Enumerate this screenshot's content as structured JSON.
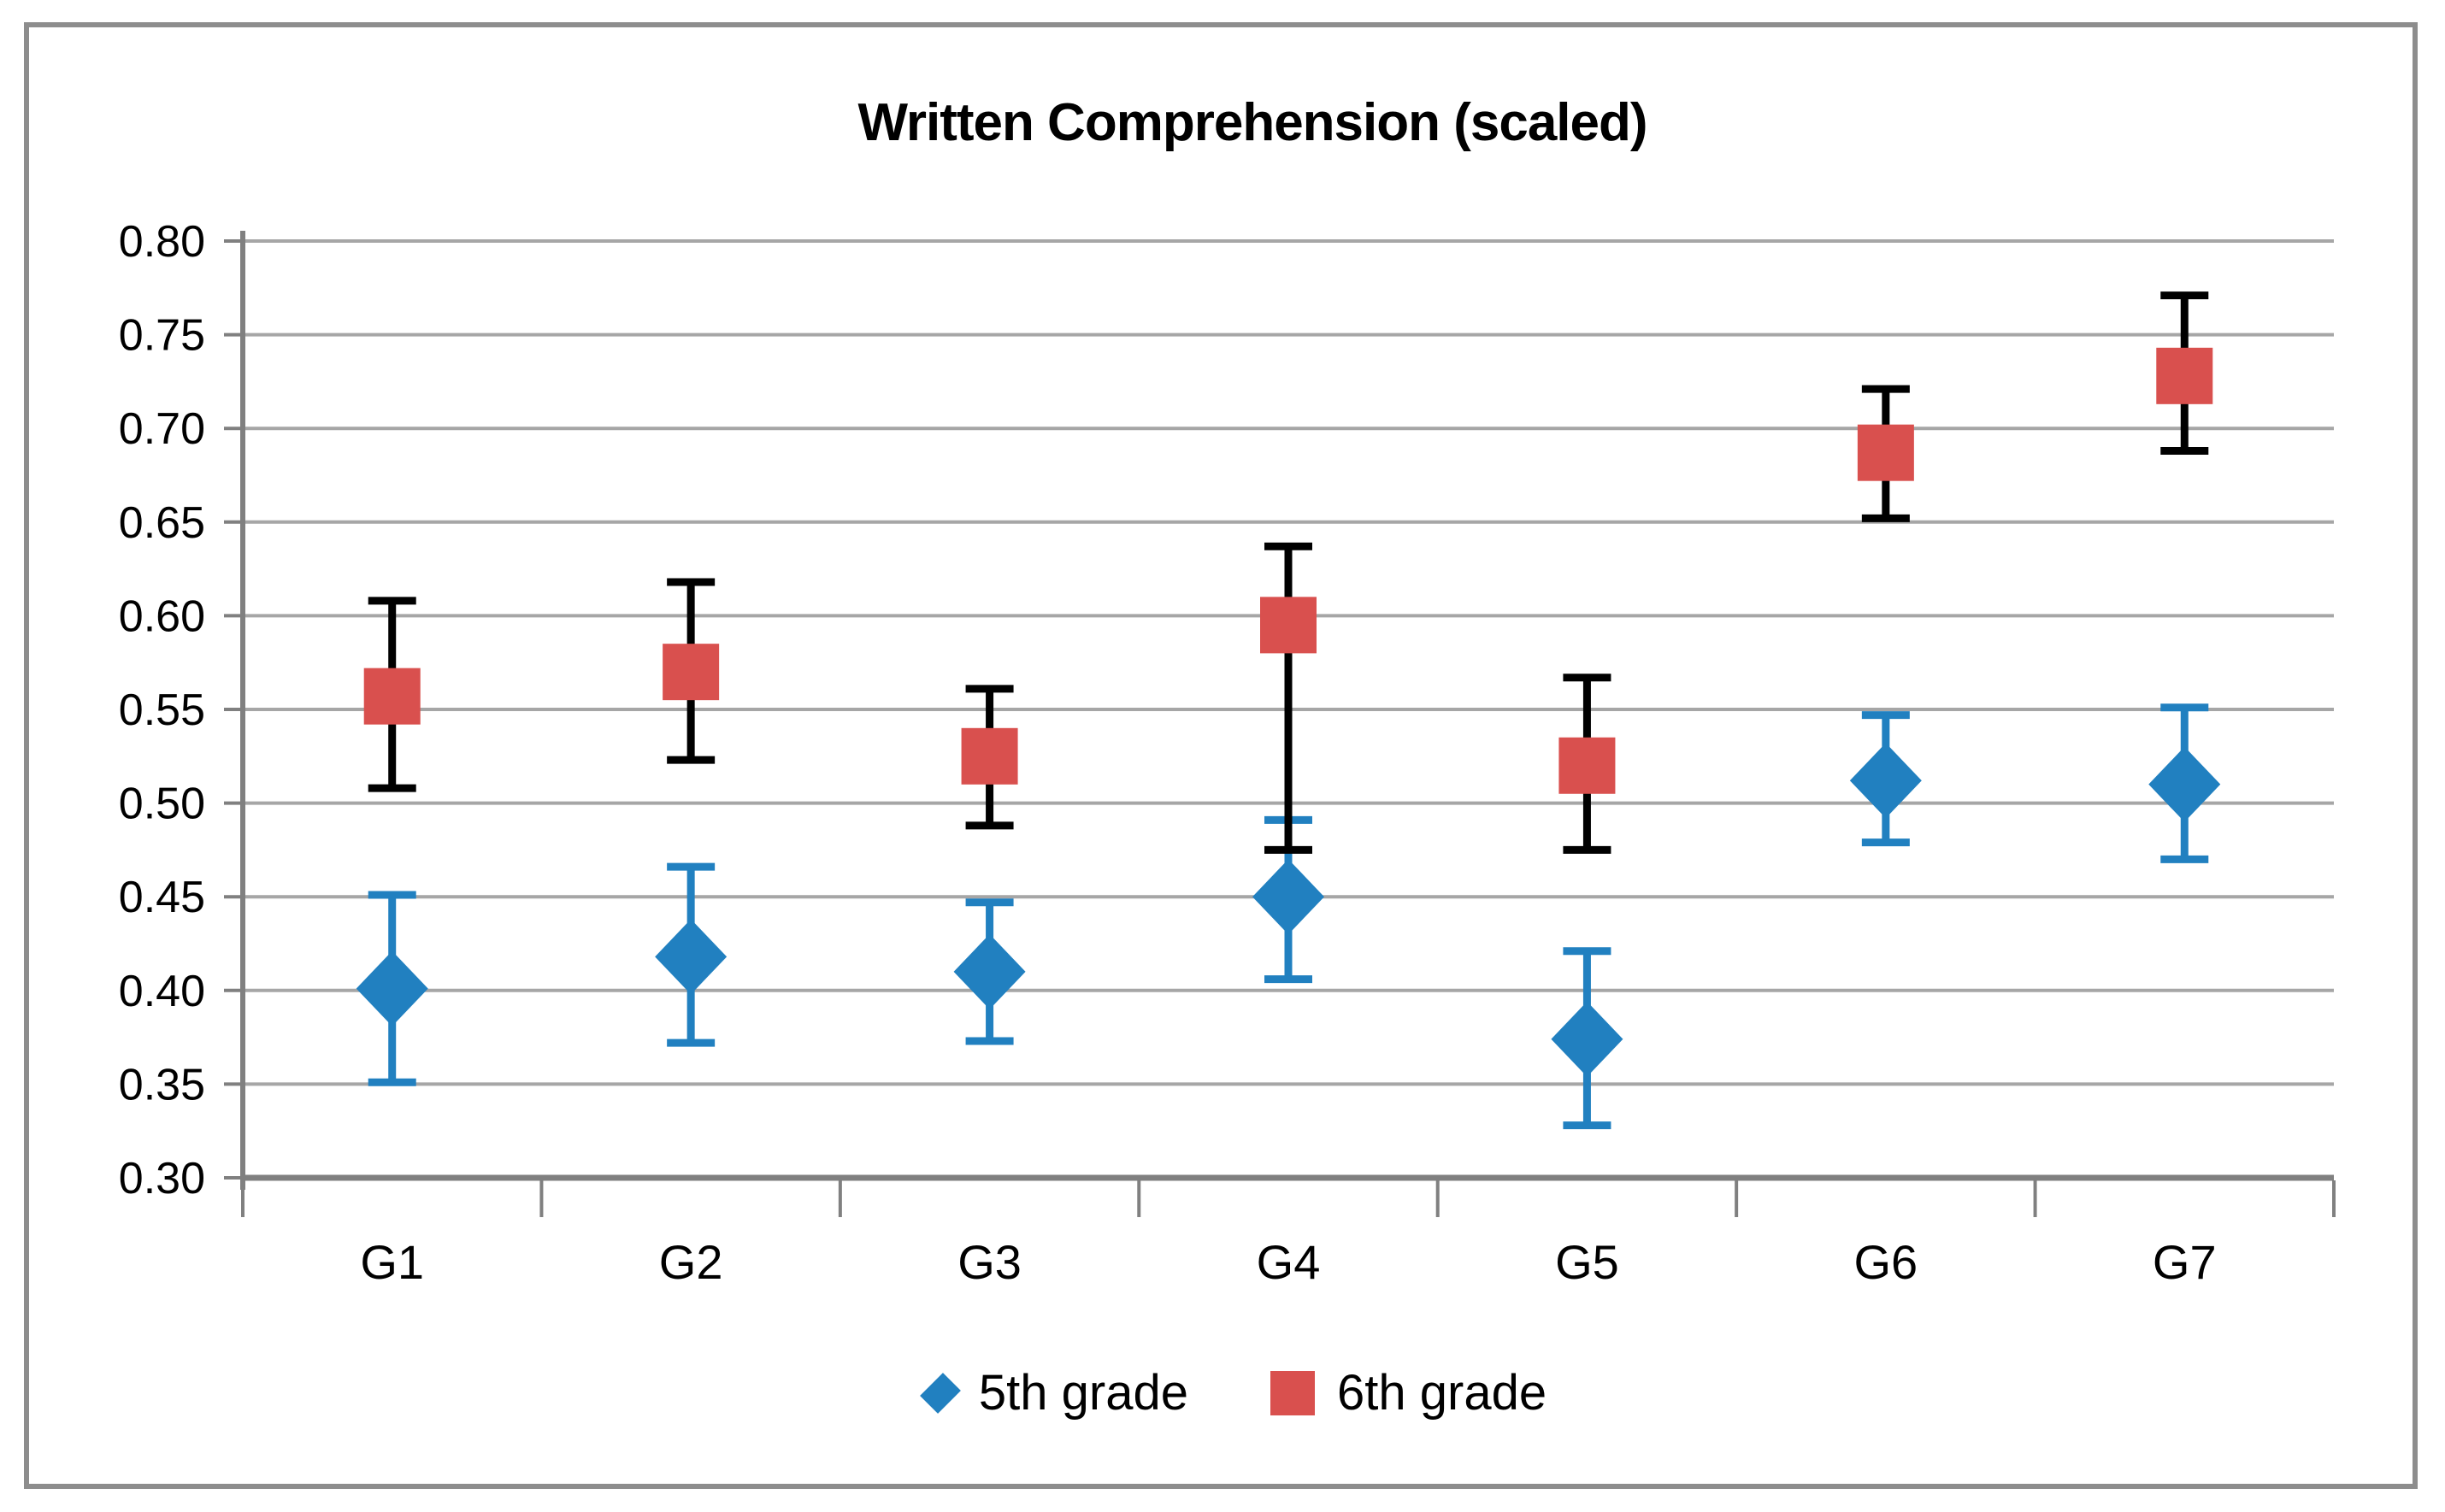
{
  "chart_data": {
    "type": "scatter",
    "title": "Written Comprehension (scaled)",
    "categories": [
      "G1",
      "G2",
      "G3",
      "G4",
      "G5",
      "G6",
      "G7"
    ],
    "series": [
      {
        "name": "5th grade",
        "marker": "diamond",
        "color": "#2180c0",
        "error_color": "#2180c0",
        "values": [
          0.401,
          0.418,
          0.41,
          0.45,
          0.374,
          0.512,
          0.51
        ],
        "ci_low": [
          0.351,
          0.372,
          0.373,
          0.406,
          0.328,
          0.479,
          0.47
        ],
        "ci_high": [
          0.451,
          0.466,
          0.447,
          0.491,
          0.421,
          0.547,
          0.551
        ]
      },
      {
        "name": "6th grade",
        "marker": "square",
        "color": "#d9504e",
        "error_color": "#000000",
        "values": [
          0.557,
          0.57,
          0.525,
          0.595,
          0.52,
          0.687,
          0.728
        ],
        "ci_low": [
          0.508,
          0.523,
          0.488,
          0.475,
          0.475,
          0.652,
          0.688
        ],
        "ci_high": [
          0.608,
          0.618,
          0.561,
          0.637,
          0.567,
          0.721,
          0.771
        ]
      }
    ],
    "ylim": [
      0.3,
      0.8
    ],
    "ytick_step": 0.05,
    "ytick_labels": [
      "0.80",
      "0.75",
      "0.70",
      "0.65",
      "0.60",
      "0.55",
      "0.50",
      "0.45",
      "0.40",
      "0.35",
      "0.30"
    ],
    "grid": true,
    "legend_position": "bottom",
    "error_bars": true
  },
  "colors": {
    "gridline": "#a6a6a6",
    "axis": "#808080",
    "frame_border": "#8d8d8d",
    "text": "#000000",
    "background": "#ffffff"
  }
}
